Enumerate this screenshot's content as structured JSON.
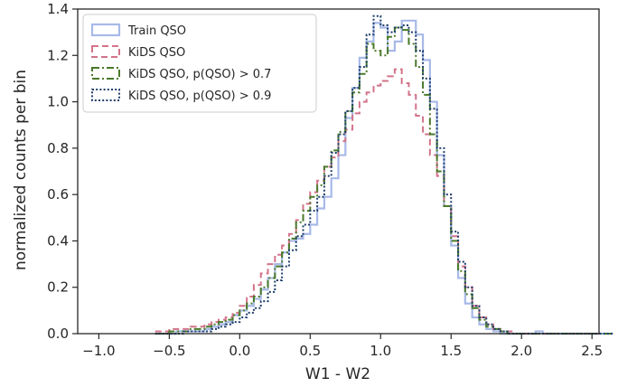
{
  "chart_data": {
    "type": "step",
    "title": "",
    "xlabel": "W1 - W2",
    "ylabel": "normalized counts per bin",
    "xlim": [
      -1.15,
      2.55
    ],
    "ylim": [
      0.0,
      1.4
    ],
    "xticks": [
      -1.0,
      -0.5,
      0.0,
      0.5,
      1.0,
      1.5,
      2.0,
      2.5
    ],
    "xtick_labels": [
      "−1.0",
      "−0.5",
      "0.0",
      "0.5",
      "1.0",
      "1.5",
      "2.0",
      "2.5"
    ],
    "yticks": [
      0.0,
      0.2,
      0.4,
      0.6,
      0.8,
      1.0,
      1.2,
      1.4
    ],
    "ytick_labels": [
      "0.0",
      "0.2",
      "0.4",
      "0.6",
      "0.8",
      "1.0",
      "1.2",
      "1.4"
    ],
    "grid": false,
    "legend_position": "top-left",
    "bin_width": 0.05,
    "bin_start": -0.6,
    "series": [
      {
        "name": "Train QSO",
        "color": "#a7b9e8",
        "dash": "solid",
        "values": [
          0.0,
          0.0,
          0.0,
          0.01,
          0.01,
          0.01,
          0.01,
          0.02,
          0.03,
          0.04,
          0.05,
          0.08,
          0.1,
          0.12,
          0.15,
          0.19,
          0.24,
          0.3,
          0.35,
          0.4,
          0.41,
          0.43,
          0.47,
          0.54,
          0.59,
          0.67,
          0.77,
          0.93,
          1.06,
          1.19,
          1.26,
          1.34,
          1.32,
          1.22,
          1.26,
          1.35,
          1.35,
          1.29,
          1.18,
          1.0,
          0.77,
          0.55,
          0.38,
          0.24,
          0.13,
          0.07,
          0.04,
          0.02,
          0.01,
          0.0,
          0.0,
          0.0,
          0.0,
          0.0,
          0.01,
          0.0,
          0.0,
          0.0,
          0.0,
          0.0,
          0.0,
          0.0,
          0.0,
          0.0,
          0.0
        ]
      },
      {
        "name": "KiDS QSO",
        "color": "#d3738a",
        "dash": "dashed",
        "values": [
          0.01,
          0.01,
          0.02,
          0.02,
          0.02,
          0.03,
          0.03,
          0.04,
          0.05,
          0.06,
          0.07,
          0.09,
          0.12,
          0.16,
          0.21,
          0.26,
          0.3,
          0.34,
          0.38,
          0.43,
          0.49,
          0.56,
          0.61,
          0.66,
          0.72,
          0.76,
          0.83,
          0.88,
          0.95,
          1.0,
          1.04,
          1.07,
          1.09,
          1.11,
          1.14,
          1.08,
          1.03,
          0.94,
          0.86,
          0.77,
          0.68,
          0.55,
          0.42,
          0.29,
          0.2,
          0.12,
          0.07,
          0.04,
          0.02,
          0.01,
          0.01,
          0.0,
          0.0,
          0.0,
          0.0,
          0.0,
          0.0,
          0.0,
          0.0,
          0.0,
          0.0,
          0.0,
          0.0,
          0.0,
          0.0
        ]
      },
      {
        "name": "KiDS QSO, p(QSO) > 0.7",
        "color": "#4a7a2a",
        "dash": "dashdot",
        "values": [
          0.0,
          0.0,
          0.01,
          0.01,
          0.01,
          0.02,
          0.02,
          0.03,
          0.04,
          0.05,
          0.06,
          0.08,
          0.1,
          0.13,
          0.16,
          0.2,
          0.24,
          0.29,
          0.35,
          0.41,
          0.48,
          0.53,
          0.59,
          0.64,
          0.72,
          0.79,
          0.87,
          0.96,
          1.04,
          1.12,
          1.25,
          1.22,
          1.2,
          1.28,
          1.32,
          1.31,
          1.25,
          1.15,
          1.03,
          0.86,
          0.7,
          0.55,
          0.4,
          0.27,
          0.17,
          0.11,
          0.06,
          0.03,
          0.02,
          0.01,
          0.0,
          0.0,
          0.0,
          0.0,
          0.0,
          0.0,
          0.0,
          0.0,
          0.0,
          0.0,
          0.0,
          0.0,
          0.0,
          0.0,
          0.0
        ]
      },
      {
        "name": "KiDS QSO, p(QSO) > 0.9",
        "color": "#1f3f6b",
        "dash": "dotted",
        "values": [
          0.0,
          0.0,
          0.0,
          0.0,
          0.01,
          0.01,
          0.01,
          0.01,
          0.02,
          0.03,
          0.04,
          0.05,
          0.07,
          0.09,
          0.11,
          0.14,
          0.18,
          0.23,
          0.29,
          0.36,
          0.42,
          0.47,
          0.53,
          0.59,
          0.68,
          0.78,
          0.86,
          0.96,
          1.06,
          1.15,
          1.29,
          1.37,
          1.33,
          1.3,
          1.32,
          1.33,
          1.3,
          1.22,
          1.1,
          0.97,
          0.8,
          0.6,
          0.44,
          0.31,
          0.2,
          0.12,
          0.07,
          0.04,
          0.02,
          0.01,
          0.0,
          0.0,
          0.0,
          0.0,
          0.0,
          0.0,
          0.0,
          0.0,
          0.0,
          0.0,
          0.0,
          0.0,
          0.0,
          0.0,
          0.0
        ]
      }
    ]
  }
}
